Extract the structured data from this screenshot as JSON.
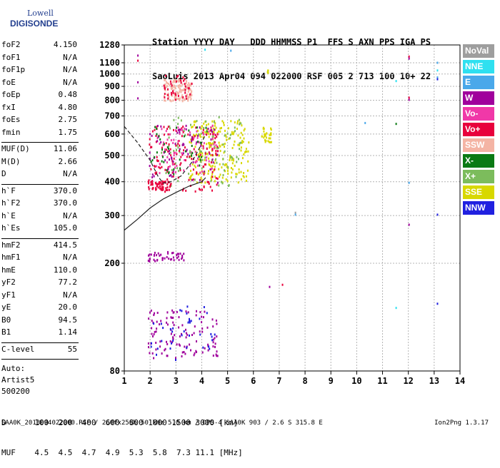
{
  "logo": {
    "line1": "Lowell",
    "line2": "DIGISONDE"
  },
  "header": {
    "line1": "Station YYYY DAY   DDD HHMMSS P1  FFS S AXN PPS IGA PS",
    "line2": "SaoLuis 2013 Apr04 094 022000 RSF 005 2 713 100 10+ 22"
  },
  "parameters": {
    "group1": [
      {
        "name": "foF2",
        "value": "4.150"
      },
      {
        "name": "foF1",
        "value": "N/A"
      },
      {
        "name": "foF1p",
        "value": "N/A"
      },
      {
        "name": "foE",
        "value": "N/A"
      },
      {
        "name": "foEp",
        "value": "0.48"
      },
      {
        "name": "fxI",
        "value": "4.80"
      },
      {
        "name": "foEs",
        "value": "2.75"
      },
      {
        "name": "fmin",
        "value": "1.75"
      }
    ],
    "group2": [
      {
        "name": "MUF(D)",
        "value": "11.06"
      },
      {
        "name": "M(D)",
        "value": "2.66"
      },
      {
        "name": "D",
        "value": "N/A"
      }
    ],
    "group3": [
      {
        "name": "h`F",
        "value": "370.0"
      },
      {
        "name": "h`F2",
        "value": "370.0"
      },
      {
        "name": "h`E",
        "value": "N/A"
      },
      {
        "name": "h`Es",
        "value": "105.0"
      }
    ],
    "group4": [
      {
        "name": "hmF2",
        "value": "414.5"
      },
      {
        "name": "hmF1",
        "value": "N/A"
      },
      {
        "name": "hmE",
        "value": "110.0"
      },
      {
        "name": "yF2",
        "value": "77.2"
      },
      {
        "name": "yF1",
        "value": "N/A"
      },
      {
        "name": "yE",
        "value": "20.0"
      },
      {
        "name": "B0",
        "value": "94.5"
      },
      {
        "name": "B1",
        "value": "1.14"
      }
    ],
    "group5": [
      {
        "name": "C-level",
        "value": "55"
      }
    ],
    "autoscale": [
      "Auto:",
      "Artist5",
      "500200"
    ]
  },
  "legend": [
    {
      "label": "NoVal",
      "color": "#9e9e9e"
    },
    {
      "label": "NNE",
      "color": "#2fe0f0"
    },
    {
      "label": "E",
      "color": "#4aa8ea"
    },
    {
      "label": "W",
      "color": "#a0009c"
    },
    {
      "label": "Vo-",
      "color": "#f038a8"
    },
    {
      "label": "Vo+",
      "color": "#e8003c"
    },
    {
      "label": "SSW",
      "color": "#f4b4a4"
    },
    {
      "label": "X-",
      "color": "#0a7a14"
    },
    {
      "label": "X+",
      "color": "#7cbc5c"
    },
    {
      "label": "SSE",
      "color": "#d8d800"
    },
    {
      "label": "NNW",
      "color": "#2020e0"
    }
  ],
  "chart_data": {
    "type": "scatter",
    "title": "",
    "xlabel": "",
    "ylabel": "",
    "xlim": [
      1,
      14
    ],
    "x_ticks": [
      1,
      2,
      3,
      4,
      5,
      6,
      7,
      8,
      9,
      10,
      11,
      12,
      13,
      14
    ],
    "y_scale": "log",
    "ylim": [
      80,
      1280
    ],
    "y_ticks": [
      80,
      200,
      300,
      400,
      500,
      600,
      700,
      800,
      900,
      1000,
      1100,
      1280
    ],
    "grid": true,
    "echo_clusters": [
      {
        "name": "SSE",
        "x_range": [
          3.5,
          5.8
        ],
        "y_range": [
          400,
          680
        ],
        "count": 230
      },
      {
        "name": "X+",
        "x_range": [
          2.4,
          5.5
        ],
        "y_range": [
          380,
          700
        ],
        "count": 90
      },
      {
        "name": "Vo+",
        "x_range": [
          1.9,
          4.6
        ],
        "y_range": [
          370,
          650
        ],
        "count": 150
      },
      {
        "name": "Vo-",
        "x_range": [
          2.2,
          4.6
        ],
        "y_range": [
          430,
          650
        ],
        "count": 70
      },
      {
        "name": "W",
        "x_range": [
          1.9,
          4.6
        ],
        "y_range": [
          400,
          650
        ],
        "count": 70
      },
      {
        "name": "X-",
        "x_range": [
          2.0,
          4.2
        ],
        "y_range": [
          430,
          650
        ],
        "count": 40
      },
      {
        "name": "SSW",
        "x_range": [
          2.5,
          3.6
        ],
        "y_range": [
          800,
          960
        ],
        "count": 120
      },
      {
        "name": "Vo+",
        "x_range": [
          2.5,
          3.6
        ],
        "y_range": [
          800,
          1000
        ],
        "count": 40
      },
      {
        "name": "Vo+",
        "x_range": [
          1.9,
          2.8
        ],
        "y_range": [
          375,
          405
        ],
        "count": 60
      },
      {
        "name": "W",
        "x_range": [
          1.9,
          3.3
        ],
        "y_range": [
          205,
          222
        ],
        "count": 45
      },
      {
        "name": "W",
        "x_range": [
          1.9,
          4.6
        ],
        "y_range": [
          90,
          135
        ],
        "count": 120
      },
      {
        "name": "NNW",
        "x_range": [
          2.0,
          4.5
        ],
        "y_range": [
          88,
          140
        ],
        "count": 40
      },
      {
        "name": "SSE",
        "x_range": [
          6.3,
          6.7
        ],
        "y_range": [
          560,
          640
        ],
        "count": 30
      },
      {
        "name": "SSE",
        "x_range": [
          6.5,
          6.6
        ],
        "y_range": [
          1010,
          1040
        ],
        "count": 4
      }
    ],
    "isolated_points": [
      {
        "x": 1.5,
        "y": 1180,
        "name": "W"
      },
      {
        "x": 1.5,
        "y": 1130,
        "name": "Vo+"
      },
      {
        "x": 1.5,
        "y": 940,
        "name": "W"
      },
      {
        "x": 1.5,
        "y": 820,
        "name": "W"
      },
      {
        "x": 4.1,
        "y": 1240,
        "name": "NNE"
      },
      {
        "x": 5.1,
        "y": 1230,
        "name": "E"
      },
      {
        "x": 12.0,
        "y": 1170,
        "name": "Vo+"
      },
      {
        "x": 12.0,
        "y": 1150,
        "name": "W"
      },
      {
        "x": 13.1,
        "y": 1110,
        "name": "E"
      },
      {
        "x": 13.1,
        "y": 1040,
        "name": "NNE"
      },
      {
        "x": 13.1,
        "y": 980,
        "name": "E"
      },
      {
        "x": 13.1,
        "y": 965,
        "name": "NNW"
      },
      {
        "x": 11.5,
        "y": 950,
        "name": "NNE"
      },
      {
        "x": 12.0,
        "y": 825,
        "name": "Vo+"
      },
      {
        "x": 12.0,
        "y": 810,
        "name": "W"
      },
      {
        "x": 10.3,
        "y": 665,
        "name": "E"
      },
      {
        "x": 11.5,
        "y": 660,
        "name": "X-"
      },
      {
        "x": 12.0,
        "y": 400,
        "name": "E"
      },
      {
        "x": 7.6,
        "y": 310,
        "name": "NoVal"
      },
      {
        "x": 7.6,
        "y": 305,
        "name": "E"
      },
      {
        "x": 12.0,
        "y": 280,
        "name": "W"
      },
      {
        "x": 13.1,
        "y": 305,
        "name": "NNW"
      },
      {
        "x": 6.6,
        "y": 165,
        "name": "W"
      },
      {
        "x": 7.1,
        "y": 168,
        "name": "Vo+"
      },
      {
        "x": 11.5,
        "y": 138,
        "name": "NNE"
      },
      {
        "x": 13.1,
        "y": 143,
        "name": "NNW"
      }
    ],
    "trace_curves": [
      {
        "name": "profile",
        "points": [
          [
            1.0,
            265
          ],
          [
            1.5,
            290
          ],
          [
            2.0,
            320
          ],
          [
            2.5,
            345
          ],
          [
            3.0,
            365
          ],
          [
            3.5,
            385
          ],
          [
            4.0,
            400
          ],
          [
            4.15,
            414
          ]
        ]
      },
      {
        "name": "virtual-height",
        "points": [
          [
            1.0,
            640
          ],
          [
            1.5,
            560
          ],
          [
            2.0,
            480
          ],
          [
            2.3,
            420
          ],
          [
            2.5,
            395
          ],
          [
            2.8,
            400
          ],
          [
            3.2,
            420
          ],
          [
            3.6,
            470
          ],
          [
            3.9,
            530
          ],
          [
            4.15,
            600
          ]
        ]
      }
    ]
  },
  "bottom": {
    "line1": "D      100  200  400  600  800 1000 1500 3000 [km]",
    "line2": "MUF    4.5  4.5  4.7  4.9  5.3  5.8  7.3 11.1 [MHz]"
  },
  "footer": {
    "left": "SAA0K_2013094022000.RSF / 260fx256h 50 kHz 5.0 km / DPS-4 SAA0K 903 / 2.6 S 315.8 E",
    "right": "Ion2Png 1.3.17"
  }
}
